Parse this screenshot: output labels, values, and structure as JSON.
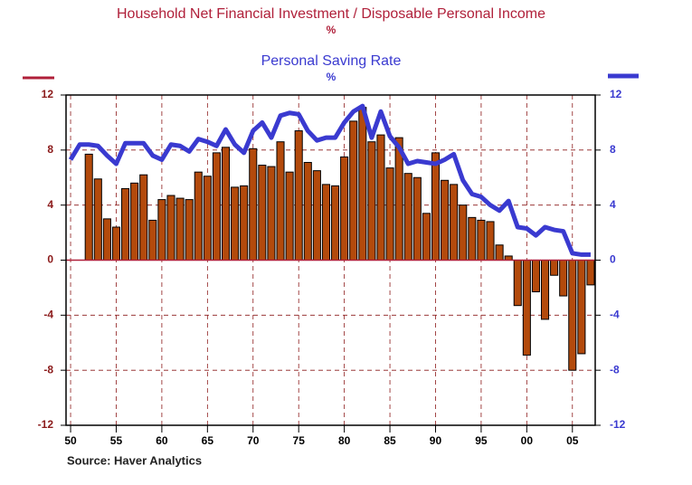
{
  "chart_data": {
    "type": "bar",
    "source": "Source: Haver Analytics",
    "ylabel": "%",
    "y2label": "%",
    "x": [
      1950,
      1951,
      1952,
      1953,
      1954,
      1955,
      1956,
      1957,
      1958,
      1959,
      1960,
      1961,
      1962,
      1963,
      1964,
      1965,
      1966,
      1967,
      1968,
      1969,
      1970,
      1971,
      1972,
      1973,
      1974,
      1975,
      1976,
      1977,
      1978,
      1979,
      1980,
      1981,
      1982,
      1983,
      1984,
      1985,
      1986,
      1987,
      1988,
      1989,
      1990,
      1991,
      1992,
      1993,
      1994,
      1995,
      1996,
      1997,
      1998,
      1999,
      2000,
      2001,
      2002,
      2003,
      2004,
      2005,
      2006,
      2007
    ],
    "series": [
      {
        "name": "Household Net Financial Investment / Disposable Personal Income",
        "type": "bar",
        "color": "#b34a0c",
        "values": [
          null,
          null,
          7.7,
          5.9,
          3.0,
          2.4,
          5.2,
          5.6,
          6.2,
          2.9,
          4.4,
          4.7,
          4.5,
          4.4,
          6.4,
          6.1,
          7.8,
          8.2,
          5.3,
          5.4,
          8.1,
          6.9,
          6.8,
          8.6,
          6.4,
          9.4,
          7.1,
          6.5,
          5.5,
          5.4,
          7.5,
          10.1,
          11.1,
          8.6,
          9.1,
          6.7,
          8.9,
          6.3,
          6.0,
          3.4,
          7.8,
          5.8,
          5.5,
          4.0,
          3.1,
          2.9,
          2.8,
          1.1,
          0.3,
          -3.3,
          -6.9,
          -2.3,
          -4.3,
          -1.1,
          -2.6,
          -8.0,
          -6.8,
          -1.8
        ]
      },
      {
        "name": "Personal Saving Rate",
        "type": "line",
        "axis": "y2",
        "color": "#3a3ad0",
        "values": [
          7.3,
          8.4,
          8.4,
          8.3,
          7.6,
          7.0,
          8.5,
          8.5,
          8.5,
          7.6,
          7.3,
          8.4,
          8.3,
          7.9,
          8.8,
          8.6,
          8.3,
          9.5,
          8.4,
          7.8,
          9.4,
          10.0,
          8.9,
          10.5,
          10.7,
          10.6,
          9.4,
          8.7,
          8.9,
          8.9,
          10.0,
          10.8,
          11.2,
          8.9,
          10.8,
          9.0,
          8.2,
          7.0,
          7.2,
          7.1,
          7.0,
          7.3,
          7.7,
          5.8,
          4.8,
          4.6,
          4.0,
          3.6,
          4.3,
          2.4,
          2.3,
          1.8,
          2.4,
          2.2,
          2.1,
          0.5,
          0.4,
          0.4
        ]
      }
    ],
    "xlim": [
      1949.5,
      2007.5
    ],
    "xticks": [
      {
        "value": 1950,
        "label": "50"
      },
      {
        "value": 1955,
        "label": "55"
      },
      {
        "value": 1960,
        "label": "60"
      },
      {
        "value": 1965,
        "label": "65"
      },
      {
        "value": 1970,
        "label": "70"
      },
      {
        "value": 1975,
        "label": "75"
      },
      {
        "value": 1980,
        "label": "80"
      },
      {
        "value": 1985,
        "label": "85"
      },
      {
        "value": 1990,
        "label": "90"
      },
      {
        "value": 1995,
        "label": "95"
      },
      {
        "value": 2000,
        "label": "00"
      },
      {
        "value": 2005,
        "label": "05"
      }
    ],
    "ylim": [
      -12,
      12
    ],
    "yticks": [
      -12,
      -8,
      -4,
      0,
      4,
      8,
      12
    ],
    "y2lim": [
      -12,
      12
    ],
    "y2ticks": [
      -12,
      -8,
      -4,
      0,
      4,
      8,
      12
    ],
    "grid": true
  }
}
